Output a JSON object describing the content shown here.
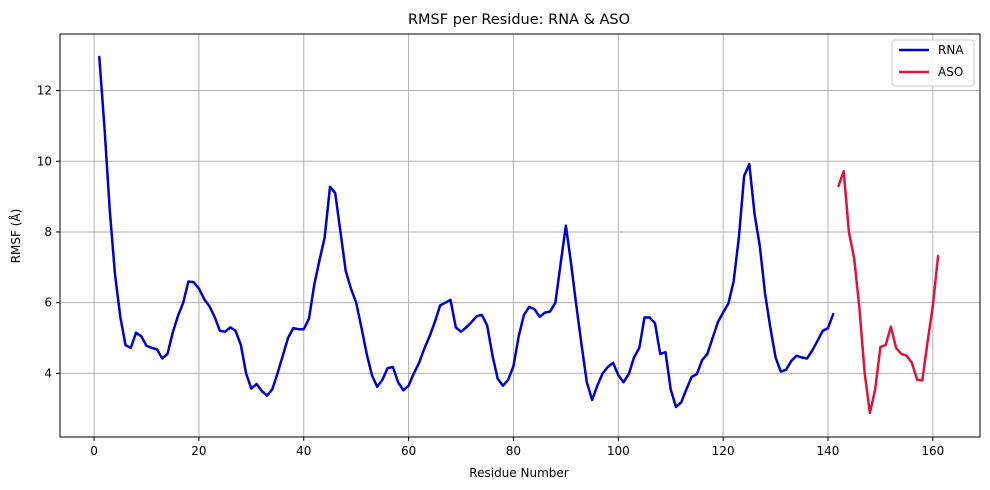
{
  "chart_data": {
    "type": "line",
    "title": "RMSF per Residue: RNA & ASO",
    "xlabel": "Residue Number",
    "ylabel": "RMSF (Å)",
    "xlim": [
      -6.5,
      169
    ],
    "ylim": [
      2.2,
      13.6
    ],
    "xticks": [
      0,
      20,
      40,
      60,
      80,
      100,
      120,
      140,
      160
    ],
    "yticks": [
      4,
      6,
      8,
      10,
      12
    ],
    "grid": true,
    "legend_position": "top-right",
    "series": [
      {
        "name": "RNA",
        "color": "#0000cc",
        "x": [
          1,
          2,
          3,
          4,
          5,
          6,
          7,
          8,
          9,
          10,
          11,
          12,
          13,
          14,
          15,
          16,
          17,
          18,
          19,
          20,
          21,
          22,
          23,
          24,
          25,
          26,
          27,
          28,
          29,
          30,
          31,
          32,
          33,
          34,
          35,
          36,
          37,
          38,
          39,
          40,
          41,
          42,
          43,
          44,
          45,
          46,
          47,
          48,
          49,
          50,
          51,
          52,
          53,
          54,
          55,
          56,
          57,
          58,
          59,
          60,
          61,
          62,
          63,
          64,
          65,
          66,
          67,
          68,
          69,
          70,
          71,
          72,
          73,
          74,
          75,
          76,
          77,
          78,
          79,
          80,
          81,
          82,
          83,
          84,
          85,
          86,
          87,
          88,
          89,
          90,
          91,
          92,
          93,
          94,
          95,
          96,
          97,
          98,
          99,
          100,
          101,
          102,
          103,
          104,
          105,
          106,
          107,
          108,
          109,
          110,
          111,
          112,
          113,
          114,
          115,
          116,
          117,
          118,
          119,
          120,
          121,
          122,
          123,
          124,
          125,
          126,
          127,
          128,
          129,
          130,
          131,
          132,
          133,
          134,
          135,
          136,
          137,
          138,
          139,
          140,
          141
        ],
        "y": [
          12.95,
          10.9,
          8.6,
          6.8,
          5.6,
          4.8,
          4.72,
          5.15,
          5.05,
          4.78,
          4.72,
          4.68,
          4.42,
          4.55,
          5.15,
          5.62,
          6.0,
          6.6,
          6.58,
          6.4,
          6.1,
          5.9,
          5.6,
          5.2,
          5.18,
          5.3,
          5.2,
          4.8,
          4.0,
          3.57,
          3.7,
          3.5,
          3.37,
          3.55,
          4.0,
          4.5,
          5.0,
          5.28,
          5.25,
          5.25,
          5.55,
          6.5,
          7.2,
          7.85,
          9.28,
          9.1,
          8.0,
          6.9,
          6.4,
          6.0,
          5.3,
          4.55,
          3.95,
          3.62,
          3.82,
          4.15,
          4.18,
          3.75,
          3.52,
          3.65,
          4.0,
          4.3,
          4.7,
          5.05,
          5.45,
          5.92,
          6.0,
          6.08,
          5.3,
          5.18,
          5.3,
          5.45,
          5.62,
          5.65,
          5.35,
          4.5,
          3.85,
          3.65,
          3.82,
          4.2,
          5.05,
          5.65,
          5.88,
          5.82,
          5.6,
          5.72,
          5.75,
          6.0,
          7.1,
          8.18,
          7.1,
          5.9,
          4.8,
          3.75,
          3.25,
          3.65,
          4.0,
          4.18,
          4.3,
          3.95,
          3.75,
          3.98,
          4.45,
          4.72,
          5.58,
          5.58,
          5.42,
          4.55,
          4.6,
          3.55,
          3.05,
          3.18,
          3.55,
          3.9,
          3.98,
          4.38,
          4.55,
          5.0,
          5.45,
          5.72,
          5.98,
          6.6,
          7.85,
          9.58,
          9.92,
          8.5,
          7.6,
          6.25,
          5.3,
          4.45,
          4.05,
          4.1,
          4.35,
          4.5,
          4.45,
          4.42,
          4.65,
          4.92,
          5.2,
          5.28,
          5.68
        ]
      },
      {
        "name": "ASO",
        "color": "#dc143c",
        "x": [
          142,
          143,
          144,
          145,
          146,
          147,
          148,
          149,
          150,
          151,
          152,
          153,
          154,
          155,
          156,
          157,
          158,
          159,
          160,
          161
        ],
        "y": [
          9.3,
          9.72,
          8.0,
          7.25,
          5.85,
          4.0,
          2.88,
          3.55,
          4.75,
          4.8,
          5.32,
          4.72,
          4.55,
          4.5,
          4.3,
          3.82,
          3.8,
          4.9,
          5.9,
          7.32
        ]
      }
    ]
  }
}
